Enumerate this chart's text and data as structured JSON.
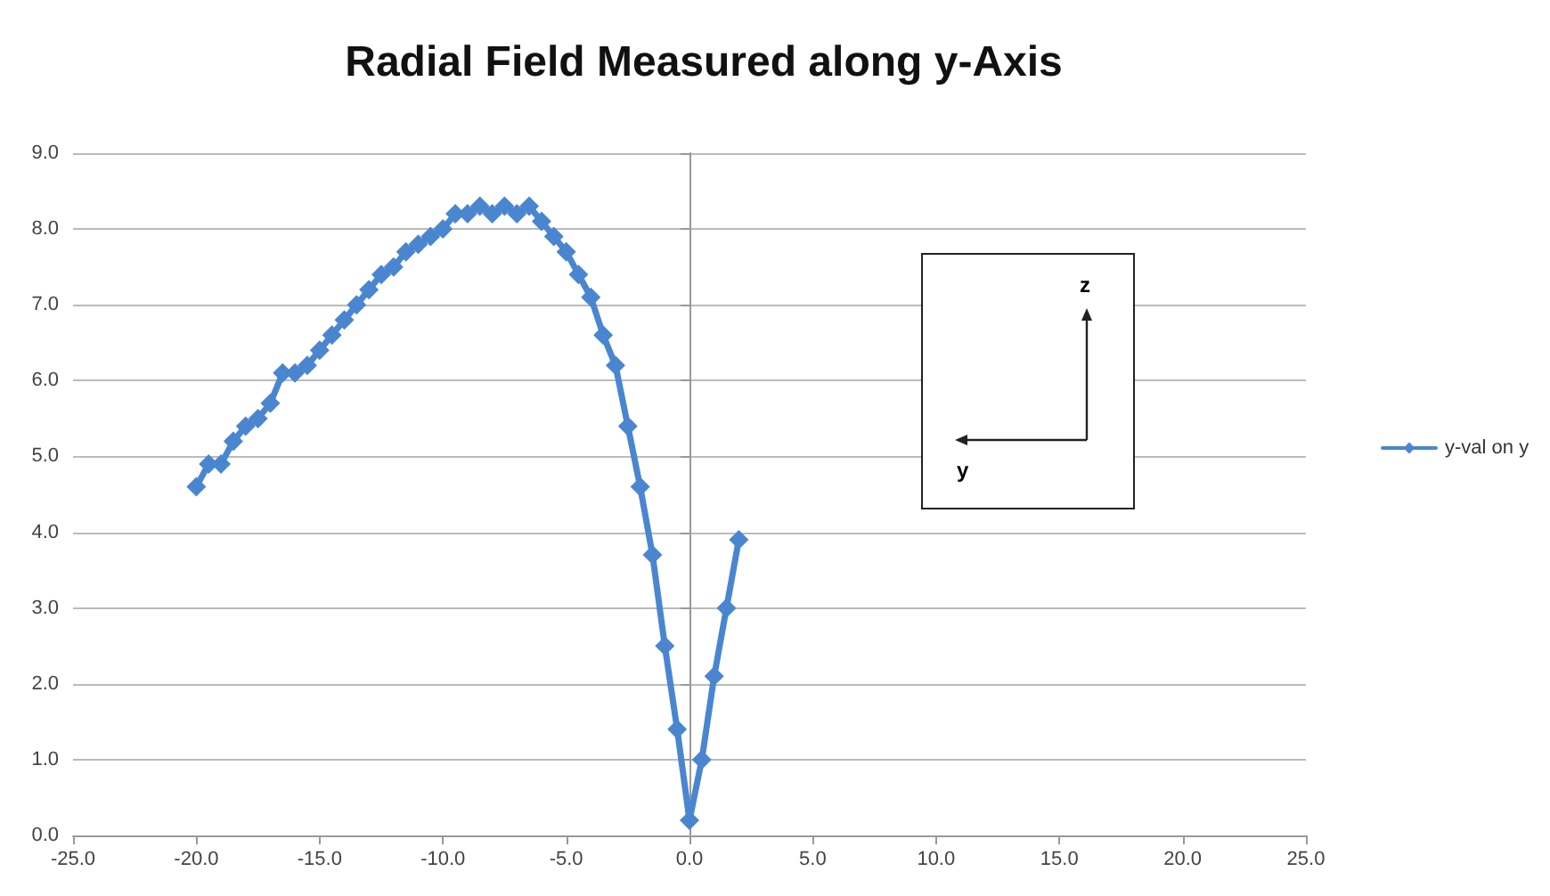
{
  "chart_data": {
    "type": "line",
    "title": "Radial Field Measured along y-Axis",
    "x": [
      -20,
      -19.5,
      -19,
      -18.5,
      -18,
      -17.5,
      -17,
      -16.5,
      -16,
      -15.5,
      -15,
      -14.5,
      -14,
      -13.5,
      -13,
      -12.5,
      -12,
      -11.5,
      -11,
      -10.5,
      -10,
      -9.5,
      -9,
      -8.5,
      -8,
      -7.5,
      -7,
      -6.5,
      -6,
      -5.5,
      -5,
      -4.5,
      -4,
      -3.5,
      -3,
      -2.5,
      -2,
      -1.5,
      -1,
      -0.5,
      0,
      0.5,
      1,
      1.5,
      2
    ],
    "series": [
      {
        "name": "y-val on y",
        "color": "#4a86d0",
        "values": [
          4.6,
          4.9,
          4.9,
          5.2,
          5.4,
          5.5,
          5.7,
          6.1,
          6.1,
          6.2,
          6.4,
          6.6,
          6.8,
          7.0,
          7.2,
          7.4,
          7.5,
          7.7,
          7.8,
          7.9,
          8.0,
          8.2,
          8.2,
          8.3,
          8.2,
          8.3,
          8.2,
          8.3,
          8.1,
          7.9,
          7.7,
          7.4,
          7.1,
          6.6,
          6.2,
          5.4,
          4.6,
          3.7,
          2.5,
          1.4,
          0.2,
          1.0,
          2.1,
          3.0,
          3.9
        ]
      }
    ],
    "xlim": [
      -25,
      25
    ],
    "xticks": [
      {
        "value": -25,
        "label": "-25.0"
      },
      {
        "value": -20,
        "label": "-20.0"
      },
      {
        "value": -15,
        "label": "-15.0"
      },
      {
        "value": -10,
        "label": "-10.0"
      },
      {
        "value": -5,
        "label": "-5.0"
      },
      {
        "value": 0,
        "label": "0.0"
      },
      {
        "value": 5,
        "label": "5.0"
      },
      {
        "value": 10,
        "label": "10.0"
      },
      {
        "value": 15,
        "label": "15.0"
      },
      {
        "value": 20,
        "label": "20.0"
      },
      {
        "value": 25,
        "label": "25.0"
      }
    ],
    "ylim": [
      0,
      9
    ],
    "yticks": [
      {
        "value": 0,
        "label": "0.0"
      },
      {
        "value": 1,
        "label": "1.0"
      },
      {
        "value": 2,
        "label": "2.0"
      },
      {
        "value": 3,
        "label": "3.0"
      },
      {
        "value": 4,
        "label": "4.0"
      },
      {
        "value": 5,
        "label": "5.0"
      },
      {
        "value": 6,
        "label": "6.0"
      },
      {
        "value": 7,
        "label": "7.0"
      },
      {
        "value": 8,
        "label": "8.0"
      },
      {
        "value": 9,
        "label": "9.0"
      }
    ],
    "annotations": [
      "z",
      "y"
    ],
    "grid": "y",
    "legend": "right",
    "marker": "diamond",
    "line_style": "solid"
  }
}
